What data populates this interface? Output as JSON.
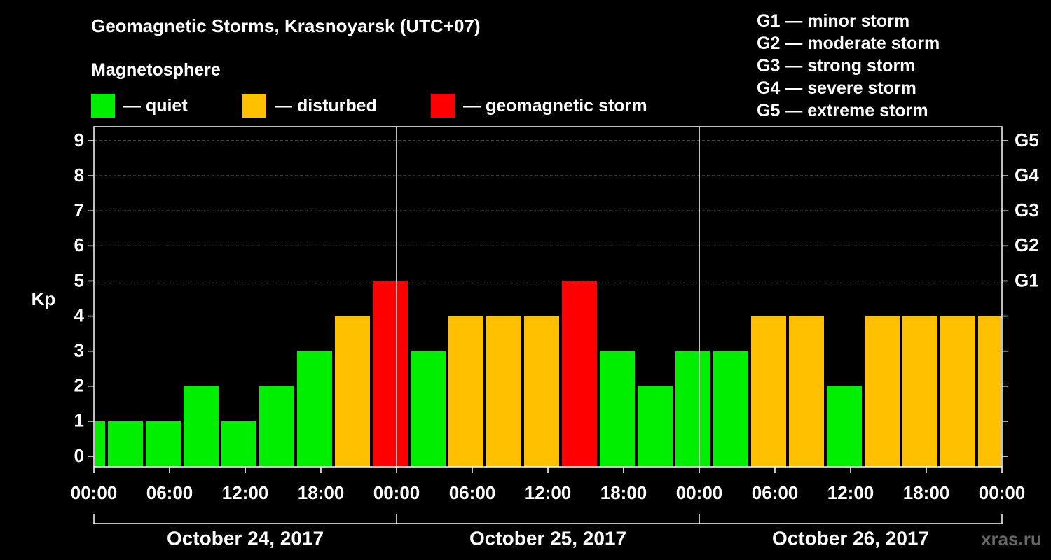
{
  "header": {
    "title": "Geomagnetic Storms, Krasnoyarsk (UTC+07)",
    "subtitle": "Magnetosphere"
  },
  "legend": [
    {
      "label": "— quiet",
      "color": "#00ee00"
    },
    {
      "label": "— disturbed",
      "color": "#ffc000"
    },
    {
      "label": "— geomagnetic storm",
      "color": "#ff0000"
    }
  ],
  "g_scale": [
    "G1 — minor storm",
    "G2 — moderate storm",
    "G3 — strong storm",
    "G4 — severe storm",
    "G5 — extreme storm"
  ],
  "watermark": "xras.ru",
  "chart_data": {
    "type": "bar",
    "title": "Geomagnetic Storms, Krasnoyarsk (UTC+07)",
    "ylabel": "Kp",
    "ylim": [
      -0.3,
      9.4
    ],
    "yticks": [
      0,
      1,
      2,
      3,
      4,
      5,
      6,
      7,
      8,
      9
    ],
    "grid_from": 5,
    "xlim_hours": [
      0,
      72
    ],
    "right_axis": [
      {
        "kp": 5,
        "label": "G1"
      },
      {
        "kp": 6,
        "label": "G2"
      },
      {
        "kp": 7,
        "label": "G3"
      },
      {
        "kp": 8,
        "label": "G4"
      },
      {
        "kp": 9,
        "label": "G5"
      }
    ],
    "time_ticks": [
      "00:00",
      "06:00",
      "12:00",
      "18:00",
      "00:00",
      "06:00",
      "12:00",
      "18:00",
      "00:00",
      "06:00",
      "12:00",
      "18:00",
      "00:00"
    ],
    "days": [
      {
        "label": "October 24, 2017",
        "start": 0,
        "end": 24
      },
      {
        "label": "October 25, 2017",
        "start": 24,
        "end": 48
      },
      {
        "label": "October 26, 2017",
        "start": 48,
        "end": 72
      }
    ],
    "colors": {
      "quiet": "#00ee00",
      "disturbed": "#ffc000",
      "storm": "#ff0000"
    },
    "bars": [
      {
        "start": 0,
        "end": 1,
        "kp": 1,
        "level": "quiet"
      },
      {
        "start": 1,
        "end": 4,
        "kp": 1,
        "level": "quiet"
      },
      {
        "start": 4,
        "end": 7,
        "kp": 1,
        "level": "quiet"
      },
      {
        "start": 7,
        "end": 10,
        "kp": 2,
        "level": "quiet"
      },
      {
        "start": 10,
        "end": 13,
        "kp": 1,
        "level": "quiet"
      },
      {
        "start": 13,
        "end": 16,
        "kp": 2,
        "level": "quiet"
      },
      {
        "start": 16,
        "end": 19,
        "kp": 3,
        "level": "quiet"
      },
      {
        "start": 19,
        "end": 22,
        "kp": 4,
        "level": "disturbed"
      },
      {
        "start": 22,
        "end": 25,
        "kp": 5,
        "level": "storm"
      },
      {
        "start": 25,
        "end": 28,
        "kp": 3,
        "level": "quiet"
      },
      {
        "start": 28,
        "end": 31,
        "kp": 4,
        "level": "disturbed"
      },
      {
        "start": 31,
        "end": 34,
        "kp": 4,
        "level": "disturbed"
      },
      {
        "start": 34,
        "end": 37,
        "kp": 4,
        "level": "disturbed"
      },
      {
        "start": 37,
        "end": 40,
        "kp": 5,
        "level": "storm"
      },
      {
        "start": 40,
        "end": 43,
        "kp": 3,
        "level": "quiet"
      },
      {
        "start": 43,
        "end": 46,
        "kp": 2,
        "level": "quiet"
      },
      {
        "start": 46,
        "end": 49,
        "kp": 3,
        "level": "quiet"
      },
      {
        "start": 49,
        "end": 52,
        "kp": 3,
        "level": "quiet"
      },
      {
        "start": 52,
        "end": 55,
        "kp": 4,
        "level": "disturbed"
      },
      {
        "start": 55,
        "end": 58,
        "kp": 4,
        "level": "disturbed"
      },
      {
        "start": 58,
        "end": 61,
        "kp": 2,
        "level": "quiet"
      },
      {
        "start": 61,
        "end": 64,
        "kp": 4,
        "level": "disturbed"
      },
      {
        "start": 64,
        "end": 67,
        "kp": 4,
        "level": "disturbed"
      },
      {
        "start": 67,
        "end": 70,
        "kp": 4,
        "level": "disturbed"
      },
      {
        "start": 70,
        "end": 72,
        "kp": 4,
        "level": "disturbed"
      }
    ]
  }
}
